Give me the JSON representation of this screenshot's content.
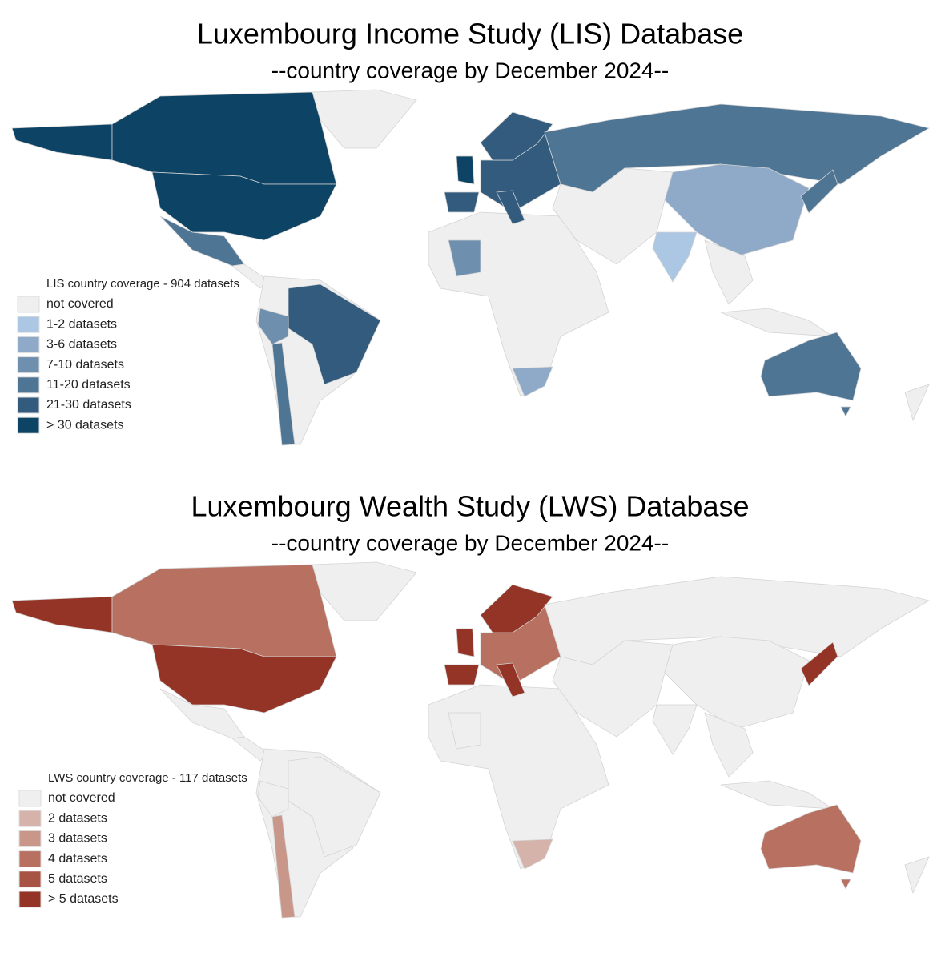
{
  "maps": [
    {
      "title": "Luxembourg Income Study (LIS) Database",
      "subtitle": "--country coverage by December 2024--",
      "legend": {
        "title": "LIS country coverage - 904 datasets",
        "items": [
          {
            "label": "not covered",
            "color": "#efefef"
          },
          {
            "label": "1-2 datasets",
            "color": "#abc7e3"
          },
          {
            "label": "3-6 datasets",
            "color": "#8faac8"
          },
          {
            "label": "7-10 datasets",
            "color": "#6e8fae"
          },
          {
            "label": "11-20 datasets",
            "color": "#4f7594"
          },
          {
            "label": "21-30 datasets",
            "color": "#325b7d"
          },
          {
            "label": "> 30 datasets",
            "color": "#0d4465"
          }
        ]
      }
    },
    {
      "title": "Luxembourg Wealth Study (LWS) Database",
      "subtitle": "--country coverage by December 2024--",
      "legend": {
        "title": "LWS country coverage - 117 datasets",
        "items": [
          {
            "label": "not covered",
            "color": "#efefef"
          },
          {
            "label": "2 datasets",
            "color": "#d5b3aa"
          },
          {
            "label": "3 datasets",
            "color": "#c9968a"
          },
          {
            "label": "4 datasets",
            "color": "#b87060"
          },
          {
            "label": "5 datasets",
            "color": "#a85444"
          },
          {
            "label": "> 5 datasets",
            "color": "#943426"
          }
        ]
      }
    }
  ]
}
